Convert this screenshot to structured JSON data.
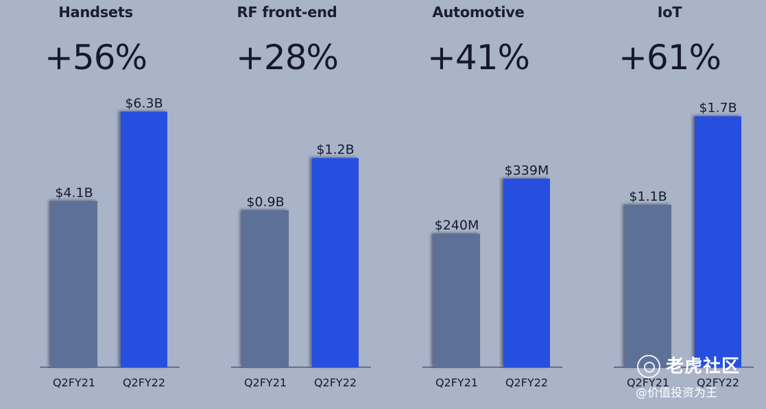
{
  "chart_data": [
    {
      "type": "bar",
      "title": "Handsets",
      "growth": "+56%",
      "categories": [
        "Q2FY21",
        "Q2FY22"
      ],
      "values": [
        4.1,
        6.3
      ],
      "value_labels": [
        "$4.1B",
        "$6.3B"
      ],
      "unit": "B",
      "ylim": [
        0,
        7.28
      ],
      "colors": [
        "#5d7198",
        "#2550e0"
      ]
    },
    {
      "type": "bar",
      "title": "RF front-end",
      "growth": "+28%",
      "categories": [
        "Q2FY21",
        "Q2FY22"
      ],
      "values": [
        0.9,
        1.2
      ],
      "value_labels": [
        "$0.9B",
        "$1.2B"
      ],
      "unit": "B",
      "ylim": [
        0,
        1.694
      ],
      "colors": [
        "#5d7198",
        "#2550e0"
      ]
    },
    {
      "type": "bar",
      "title": "Automotive",
      "growth": "+41%",
      "categories": [
        "Q2FY21",
        "Q2FY22"
      ],
      "values": [
        240,
        339
      ],
      "value_labels": [
        "$240M",
        "$339M"
      ],
      "unit": "M",
      "ylim": [
        0,
        531
      ],
      "colors": [
        "#5d7198",
        "#2550e0"
      ]
    },
    {
      "type": "bar",
      "title": "IoT",
      "growth": "+61%",
      "categories": [
        "Q2FY21",
        "Q2FY22"
      ],
      "values": [
        1.1,
        1.7
      ],
      "value_labels": [
        "$1.1B",
        "$1.7B"
      ],
      "unit": "B",
      "ylim": [
        0,
        2.0
      ],
      "colors": [
        "#5d7198",
        "#2550e0"
      ]
    }
  ],
  "watermark": {
    "main": "老虎社区",
    "sub": "@价值投资为王"
  }
}
